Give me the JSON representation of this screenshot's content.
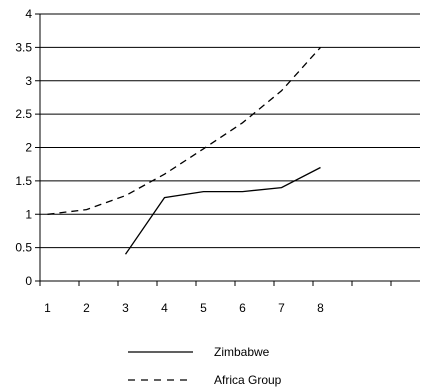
{
  "chart_data": {
    "type": "line",
    "title": "",
    "xlabel": "",
    "ylabel": "",
    "x_ticks": [
      "1",
      "2",
      "3",
      "4",
      "5",
      "6",
      "7",
      "8",
      "",
      ""
    ],
    "y_ticks": [
      "0",
      "0.5",
      "1",
      "1.5",
      "2",
      "2.5",
      "3",
      "3.5",
      "4"
    ],
    "ylim": [
      0,
      4
    ],
    "grid": "horizontal",
    "legend_position": "bottom",
    "series": [
      {
        "name": "Zimbabwe",
        "style": "solid",
        "color": "#000000",
        "x": [
          3,
          4,
          5,
          6,
          7,
          8
        ],
        "y": [
          0.4,
          1.25,
          1.34,
          1.34,
          1.4,
          1.7
        ]
      },
      {
        "name": "Africa Group",
        "style": "dashed",
        "color": "#000000",
        "x": [
          1,
          2,
          3,
          4,
          5,
          6,
          7,
          8
        ],
        "y": [
          1.0,
          1.07,
          1.28,
          1.6,
          1.98,
          2.37,
          2.85,
          3.5
        ]
      }
    ]
  }
}
